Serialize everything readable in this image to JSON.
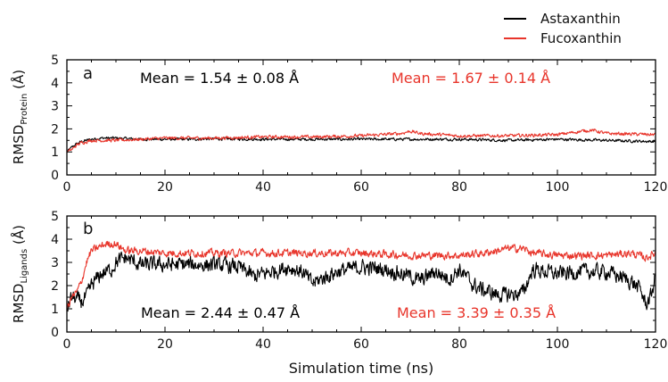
{
  "chart_data": [
    {
      "type": "line",
      "panel_label": "a",
      "ylabel_main": "RMSD",
      "ylabel_sub": "Protein",
      "ylabel_unit": " (Å)",
      "xlabel": "",
      "xlim": [
        0,
        120
      ],
      "ylim": [
        0,
        5
      ],
      "x_ticks": [
        "0",
        "20",
        "40",
        "60",
        "80",
        "100",
        "120"
      ],
      "y_ticks": [
        "0",
        "1",
        "2",
        "3",
        "4",
        "5"
      ],
      "grid": false,
      "annotations": [
        {
          "text": "Mean = 1.54 ± 0.08 Å",
          "series": "Astaxanthin"
        },
        {
          "text": "Mean = 1.67 ± 0.14 Å",
          "series": "Fucoxanthin"
        }
      ],
      "series": [
        {
          "name": "Astaxanthin",
          "color": "#000000",
          "noise": 0.05,
          "x": [
            0,
            1,
            2,
            3,
            5,
            7,
            10,
            15,
            20,
            25,
            30,
            40,
            50,
            60,
            70,
            80,
            90,
            100,
            110,
            120
          ],
          "y": [
            1.0,
            1.2,
            1.35,
            1.45,
            1.55,
            1.6,
            1.6,
            1.55,
            1.55,
            1.55,
            1.57,
            1.55,
            1.55,
            1.55,
            1.55,
            1.55,
            1.5,
            1.55,
            1.5,
            1.45
          ]
        },
        {
          "name": "Fucoxanthin",
          "color": "#e8352b",
          "noise": 0.06,
          "x": [
            0,
            1,
            2,
            3,
            5,
            7,
            10,
            15,
            20,
            25,
            30,
            40,
            50,
            60,
            68,
            70,
            72,
            80,
            90,
            100,
            105,
            107,
            110,
            120
          ],
          "y": [
            1.0,
            1.1,
            1.3,
            1.4,
            1.5,
            1.5,
            1.5,
            1.55,
            1.6,
            1.6,
            1.6,
            1.65,
            1.65,
            1.7,
            1.8,
            1.9,
            1.8,
            1.7,
            1.7,
            1.75,
            1.9,
            1.95,
            1.8,
            1.75
          ]
        }
      ]
    },
    {
      "type": "line",
      "panel_label": "b",
      "ylabel_main": "RMSD",
      "ylabel_sub": "Ligands",
      "ylabel_unit": " (Å)",
      "xlabel": "Simulation time (ns)",
      "xlim": [
        0,
        120
      ],
      "ylim": [
        0,
        5
      ],
      "x_ticks": [
        "0",
        "20",
        "40",
        "60",
        "80",
        "100",
        "120"
      ],
      "y_ticks": [
        "0",
        "1",
        "2",
        "3",
        "4",
        "5"
      ],
      "grid": false,
      "annotations": [
        {
          "text": "Mean = 2.44 ± 0.47 Å",
          "series": "Astaxanthin"
        },
        {
          "text": "Mean = 3.39 ± 0.35 Å",
          "series": "Fucoxanthin"
        }
      ],
      "series": [
        {
          "name": "Astaxanthin",
          "color": "#000000",
          "noise": 0.28,
          "x": [
            0,
            1,
            2,
            3,
            4,
            5,
            7,
            9,
            10,
            12,
            15,
            20,
            25,
            30,
            35,
            38,
            40,
            45,
            48,
            50,
            55,
            60,
            65,
            70,
            72,
            75,
            78,
            80,
            83,
            85,
            88,
            90,
            93,
            95,
            100,
            105,
            110,
            115,
            117,
            118,
            119,
            120
          ],
          "y": [
            1.0,
            1.5,
            1.4,
            1.3,
            1.5,
            2.0,
            2.5,
            2.7,
            3.0,
            3.2,
            2.9,
            2.9,
            2.9,
            2.9,
            2.8,
            2.4,
            2.5,
            2.8,
            2.6,
            2.1,
            2.6,
            2.8,
            2.7,
            2.4,
            2.2,
            2.6,
            2.3,
            2.7,
            2.0,
            1.8,
            1.6,
            1.6,
            1.7,
            2.7,
            2.5,
            2.6,
            2.6,
            2.2,
            1.8,
            1.2,
            1.5,
            2.4
          ]
        },
        {
          "name": "Fucoxanthin",
          "color": "#e8352b",
          "noise": 0.14,
          "x": [
            0,
            1,
            2,
            3,
            4,
            5,
            6,
            8,
            10,
            12,
            15,
            20,
            30,
            40,
            50,
            60,
            70,
            80,
            85,
            90,
            93,
            95,
            100,
            110,
            115,
            118,
            120
          ],
          "y": [
            1.0,
            1.5,
            1.7,
            2.2,
            3.0,
            3.5,
            3.6,
            3.8,
            3.8,
            3.5,
            3.5,
            3.4,
            3.4,
            3.4,
            3.4,
            3.4,
            3.3,
            3.3,
            3.4,
            3.6,
            3.6,
            3.4,
            3.3,
            3.3,
            3.4,
            3.2,
            3.4
          ]
        }
      ]
    }
  ],
  "legend": {
    "position": "top-right",
    "items": [
      {
        "label": "Astaxanthin",
        "color": "#000000"
      },
      {
        "label": "Fucoxanthin",
        "color": "#e8352b"
      }
    ]
  }
}
